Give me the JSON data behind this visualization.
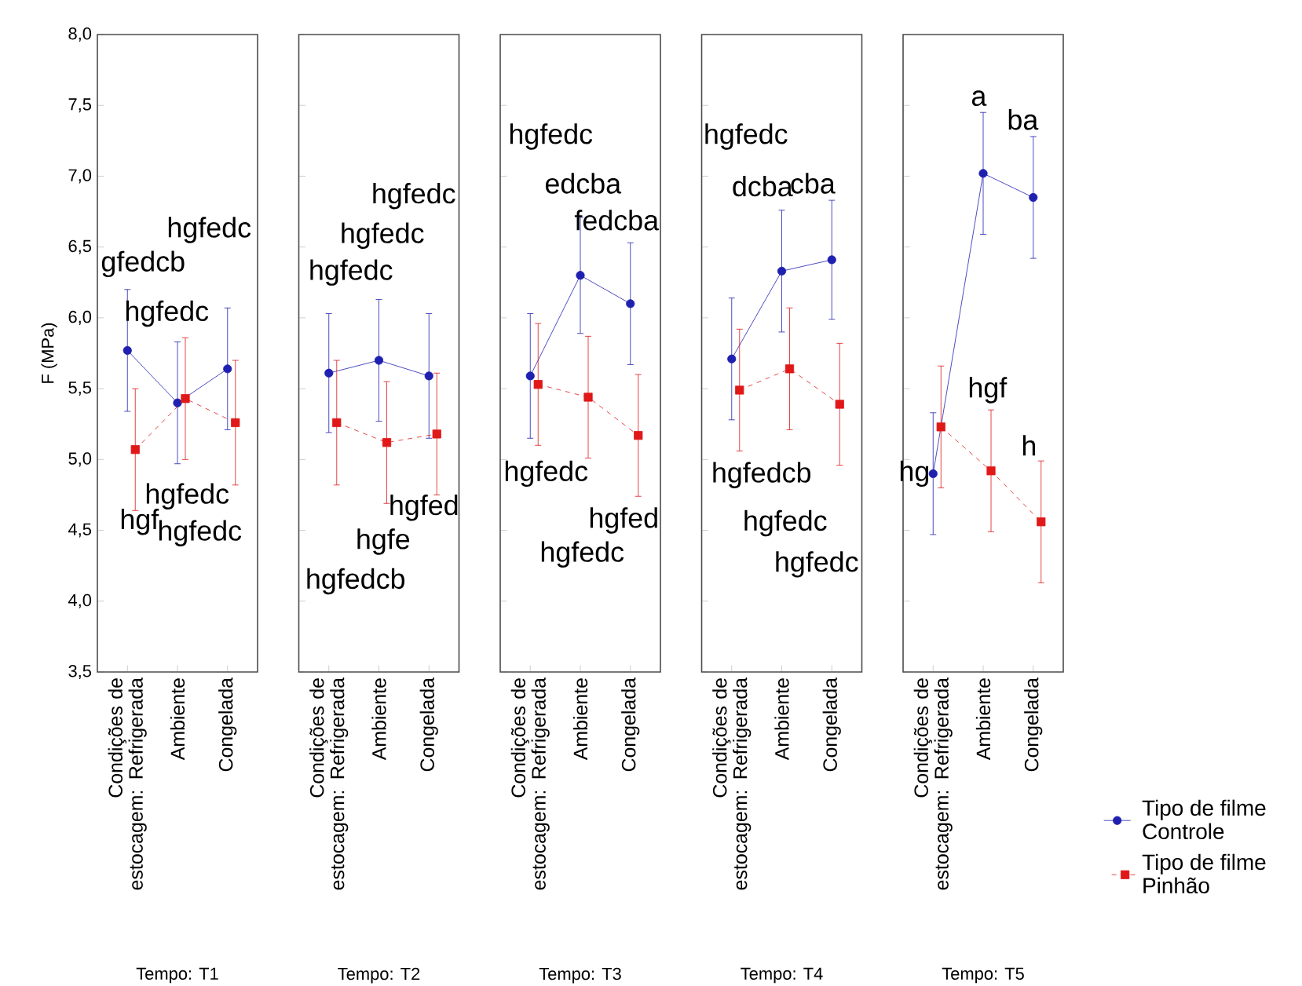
{
  "chart_data": [
    {
      "type": "line",
      "categories": [
        "Condições de estocagem: Refrigerada",
        "Ambiente",
        "Congelada"
      ],
      "xlabel": "Tempo: T1",
      "ylabel": "F (MPa)",
      "ylim": [
        3.5,
        8
      ],
      "yticks": [
        {
          "value": 3.5,
          "label": "3,5"
        },
        {
          "value": 4,
          "label": "4,0"
        },
        {
          "value": 4.5,
          "label": "4,5"
        },
        {
          "value": 5,
          "label": "5,0"
        },
        {
          "value": 5.5,
          "label": "5,5"
        },
        {
          "value": 6,
          "label": "6,0"
        },
        {
          "value": 6.5,
          "label": "6,5"
        },
        {
          "value": 7,
          "label": "7,0"
        },
        {
          "value": 7.5,
          "label": "7,5"
        },
        {
          "value": 8,
          "label": "8,0"
        }
      ],
      "series": [
        {
          "color": "#2020b0",
          "marker": "circle",
          "line_style": "solid",
          "values": [
            5.77,
            5.4,
            5.64
          ],
          "errors": [
            0.43,
            0.43,
            0.43
          ]
        },
        {
          "color": "#e01818",
          "marker": "square",
          "line_style": "dashed",
          "values": [
            5.07,
            5.43,
            5.26
          ],
          "errors": [
            0.43,
            0.43,
            0.44
          ]
        }
      ],
      "annotations": [
        "gfedcb",
        "hgfedc",
        "hgfedc",
        "hgf",
        "hgfedc",
        "hgfedc"
      ]
    },
    {
      "type": "line",
      "categories": [
        "Condições de estocagem: Refrigerada",
        "Ambiente",
        "Congelada"
      ],
      "xlabel": "Tempo: T2",
      "ylim": [
        3.5,
        8
      ],
      "yticks": [
        3.5,
        4,
        4.5,
        5,
        5.5,
        6,
        6.5,
        7,
        7.5,
        8
      ],
      "tick_labels": "x",
      "series": [
        {
          "color": "#2020b0",
          "marker": "circle",
          "line_style": "solid",
          "values": [
            5.61,
            5.7,
            5.59
          ],
          "errors": [
            0.42,
            0.43,
            0.44
          ]
        },
        {
          "color": "#e01818",
          "marker": "square",
          "line_style": "dashed",
          "values": [
            5.26,
            5.12,
            5.18
          ],
          "errors": [
            0.44,
            0.43,
            0.43
          ]
        }
      ],
      "annotations": [
        "hgfedc",
        "hgfedc",
        "hgfedc",
        "hgfedcb",
        "hgfe",
        "hgfed"
      ]
    },
    {
      "type": "line",
      "categories": [
        "Condições de estocagem: Refrigerada",
        "Ambiente",
        "Congelada"
      ],
      "xlabel": "Tempo: T3",
      "ylim": [
        3.5,
        8
      ],
      "yticks": [
        3.5,
        4,
        4.5,
        5,
        5.5,
        6,
        6.5,
        7,
        7.5,
        8
      ],
      "tick_labels": "x",
      "series": [
        {
          "color": "#2020b0",
          "marker": "circle",
          "line_style": "solid",
          "values": [
            5.59,
            6.3,
            6.1
          ],
          "errors": [
            0.44,
            0.41,
            0.43
          ]
        },
        {
          "color": "#e01818",
          "marker": "square",
          "line_style": "dashed",
          "values": [
            5.53,
            5.44,
            5.17
          ],
          "errors": [
            0.43,
            0.43,
            0.43
          ]
        }
      ],
      "annotations": [
        "hgfedc",
        "edcba",
        "fedcba",
        "hgfedc",
        "hgfedc",
        "hgfed"
      ]
    },
    {
      "type": "line",
      "categories": [
        "Condições de estocagem: Refrigerada",
        "Ambiente",
        "Congelada"
      ],
      "xlabel": "Tempo: T4",
      "ylim": [
        3.5,
        8
      ],
      "yticks": [
        3.5,
        4,
        4.5,
        5,
        5.5,
        6,
        6.5,
        7,
        7.5,
        8
      ],
      "tick_labels": "x",
      "series": [
        {
          "color": "#2020b0",
          "marker": "circle",
          "line_style": "solid",
          "values": [
            5.71,
            6.33,
            6.41
          ],
          "errors": [
            0.43,
            0.43,
            0.42
          ]
        },
        {
          "color": "#e01818",
          "marker": "square",
          "line_style": "dashed",
          "values": [
            5.49,
            5.64,
            5.39
          ],
          "errors": [
            0.43,
            0.43,
            0.43
          ]
        }
      ],
      "annotations": [
        "hgfedc",
        "dcba",
        "cba",
        "hgfedcb",
        "hgfedc",
        "hgfedc"
      ]
    },
    {
      "type": "line",
      "categories": [
        "Condições de estocagem: Refrigerada",
        "Ambiente",
        "Congelada"
      ],
      "xlabel": "Tempo: T5",
      "ylim": [
        3.5,
        8
      ],
      "yticks": [
        3.5,
        4,
        4.5,
        5,
        5.5,
        6,
        6.5,
        7,
        7.5,
        8
      ],
      "tick_labels": "x",
      "legend": "bottom right",
      "series": [
        {
          "name": "Tipo de filme Controle",
          "color": "#2020b0",
          "marker": "circle",
          "line_style": "solid",
          "values": [
            4.9,
            7.02,
            6.85
          ],
          "errors": [
            0.43,
            0.43,
            0.43
          ]
        },
        {
          "name": "Tipo de filme Pinhão",
          "color": "#e01818",
          "marker": "square",
          "line_style": "dashed",
          "values": [
            5.23,
            4.92,
            4.56
          ],
          "errors": [
            0.43,
            0.43,
            0.43
          ]
        }
      ],
      "annotations": [
        "hg",
        "a",
        "ba",
        "hgf",
        "h"
      ]
    }
  ]
}
